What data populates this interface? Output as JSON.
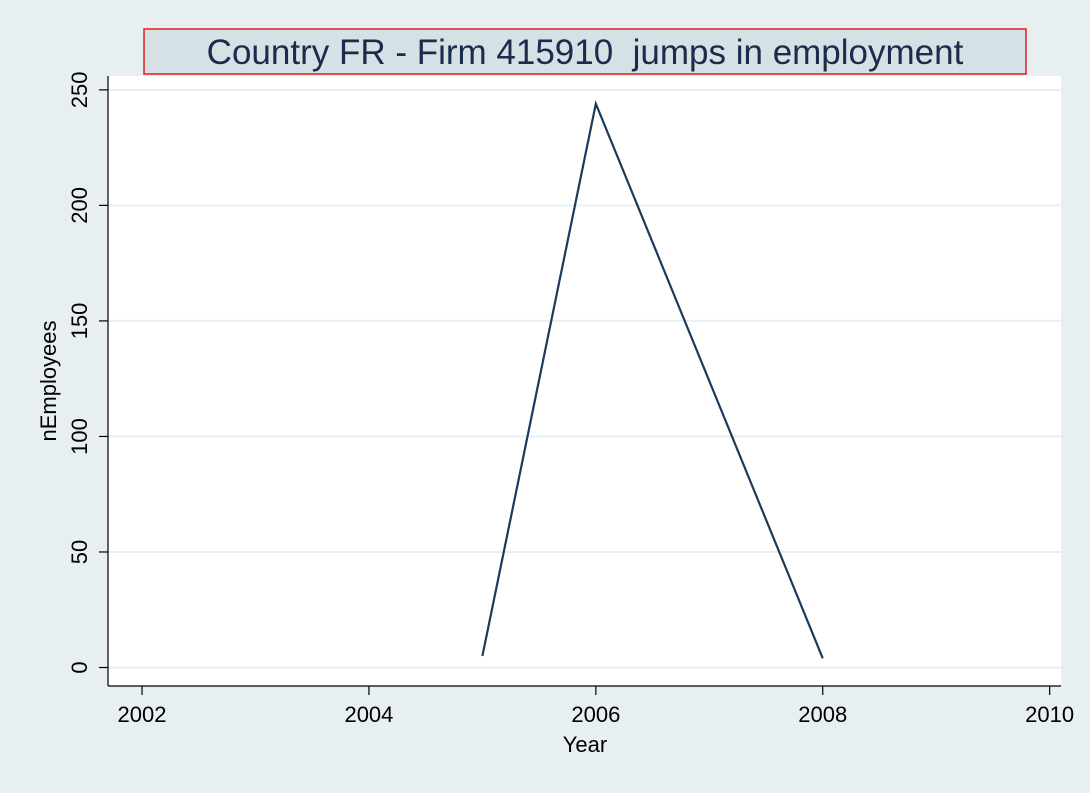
{
  "chart_data": {
    "type": "line",
    "title": "Country FR - Firm 415910  jumps in employment",
    "xlabel": "Year",
    "ylabel": "nEmployees",
    "xlim": [
      2001.7,
      2010.1
    ],
    "ylim": [
      -8,
      256
    ],
    "x_ticks": [
      2002,
      2004,
      2006,
      2008,
      2010
    ],
    "y_ticks": [
      0,
      50,
      100,
      150,
      200,
      250
    ],
    "grid": true,
    "series": [
      {
        "x": [
          2005,
          2006,
          2008
        ],
        "values": [
          5,
          244,
          4
        ]
      }
    ],
    "colors": {
      "background": "#e8eff1",
      "plot_background": "#ffffff",
      "grid": "#e8eff1",
      "line": "#1a3b5c",
      "title_box_border": "#e01e1e",
      "title_box_fill": "#d6e1e6"
    }
  }
}
